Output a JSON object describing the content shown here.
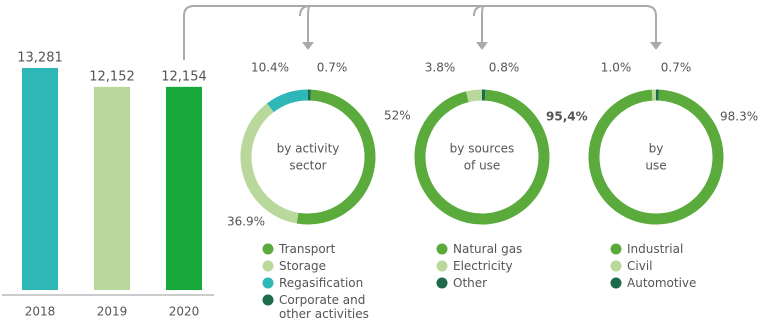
{
  "chart_data": [
    {
      "type": "bar",
      "categories": [
        "2018",
        "2019",
        "2020"
      ],
      "values": [
        13281,
        12152,
        12154
      ],
      "value_labels": [
        "13,281",
        "12,152",
        "12,154"
      ],
      "colors": [
        "#2db7b6",
        "#b9d99c",
        "#18a83b"
      ]
    },
    {
      "type": "pie",
      "center_label": [
        "by activity",
        "sector"
      ],
      "categories": [
        "Transport",
        "Storage",
        "Regasification",
        "Corporate and other activities"
      ],
      "values": [
        52,
        36.9,
        10.4,
        0.7
      ],
      "value_labels": [
        "52%",
        "36.9%",
        "10.4%",
        "0.7%"
      ],
      "colors": [
        "#5aab3c",
        "#b9d99c",
        "#2db7b6",
        "#1d6b4b"
      ]
    },
    {
      "type": "pie",
      "center_label": [
        "by sources",
        "of use"
      ],
      "categories": [
        "Natural gas",
        "Electricity",
        "Other"
      ],
      "values": [
        95.4,
        3.8,
        0.8
      ],
      "value_labels": [
        "95,4%",
        "3.8%",
        "0.8%"
      ],
      "colors": [
        "#5aab3c",
        "#b9d99c",
        "#1d6b4b"
      ]
    },
    {
      "type": "pie",
      "center_label": [
        "by",
        "use"
      ],
      "categories": [
        "Industrial",
        "Civil",
        "Automotive"
      ],
      "values": [
        98.3,
        1.0,
        0.7
      ],
      "value_labels": [
        "98.3%",
        "1.0%",
        "0.7%"
      ],
      "colors": [
        "#5aab3c",
        "#b9d99c",
        "#1d6b4b"
      ]
    }
  ]
}
